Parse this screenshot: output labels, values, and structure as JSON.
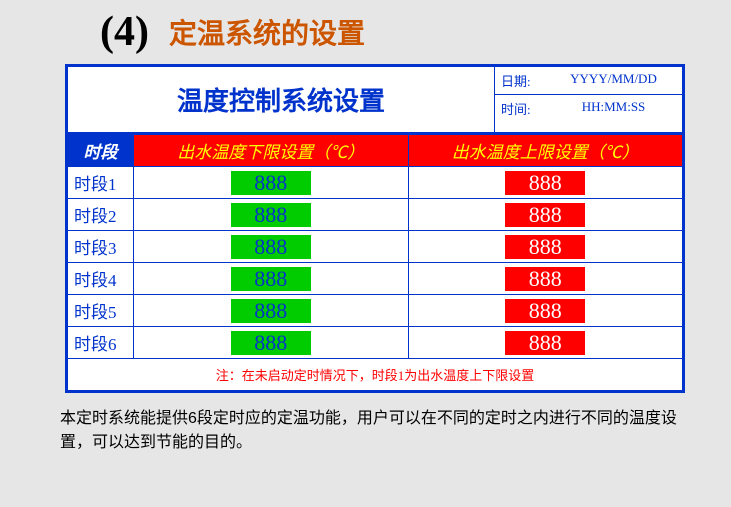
{
  "header": {
    "step": "(4)",
    "section_title": "定温系统的设置"
  },
  "panel": {
    "title": "温度控制系统设置",
    "date_label": "日期:",
    "date_value": "YYYY/MM/DD",
    "time_label": "时间:",
    "time_value": "HH:MM:SS"
  },
  "grid": {
    "head_period": "时段",
    "head_low": "出水温度下限设置（℃）",
    "head_high": "出水温度上限设置（℃）",
    "rows": [
      {
        "period": "时段1",
        "low": "888",
        "high": "888"
      },
      {
        "period": "时段2",
        "low": "888",
        "high": "888"
      },
      {
        "period": "时段3",
        "low": "888",
        "high": "888"
      },
      {
        "period": "时段4",
        "low": "888",
        "high": "888"
      },
      {
        "period": "时段5",
        "low": "888",
        "high": "888"
      },
      {
        "period": "时段6",
        "low": "888",
        "high": "888"
      }
    ],
    "note": "注：在未启动定时情况下，时段1为出水温度上下限设置"
  },
  "description": "本定时系统能提供6段定时应的定温功能，用户可以在不同的定时之内进行不同的温度设置，可以达到节能的目的。",
  "style": {
    "accent_blue": "#0033cc",
    "title_orange": "#cc5500",
    "low_bg": "#00cc00",
    "high_bg": "#ff0000",
    "head_text": "#ffff00",
    "page_bg": "#e6e6e6"
  }
}
